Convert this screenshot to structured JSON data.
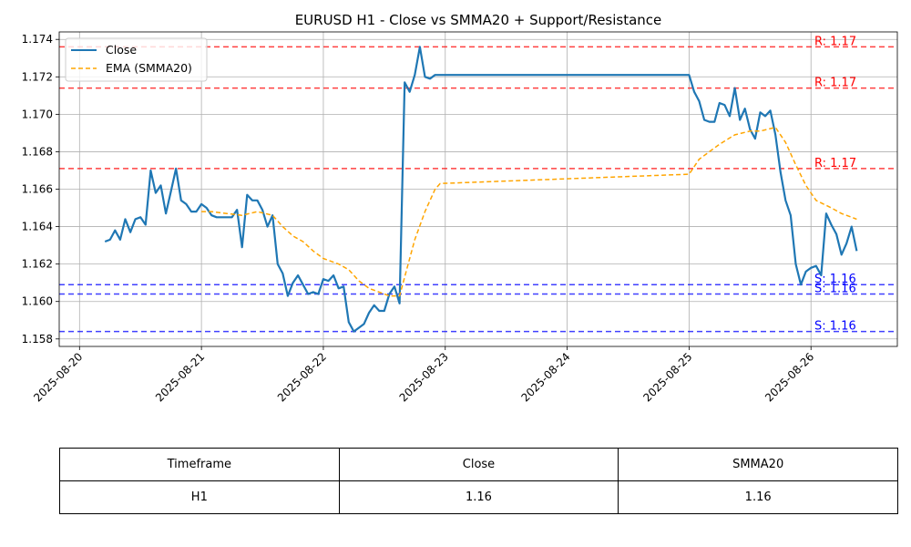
{
  "colors": {
    "close": "#1f77b4",
    "ema": "#ffa500",
    "resistance": "#ff0000",
    "support": "#0000ff",
    "grid": "#b0b0b0"
  },
  "chart_data": {
    "type": "line",
    "title": "EURUSD H1 - Close vs SMMA20 + Support/Resistance",
    "xlabel": "",
    "ylabel": "",
    "xlim": [
      "2025-08-19T20:00",
      "2025-08-26T17:00"
    ],
    "ylim": [
      1.1576,
      1.1744
    ],
    "grid": true,
    "legend": "top-left",
    "x_ticks": [
      "2025-08-20",
      "2025-08-21",
      "2025-08-22",
      "2025-08-23",
      "2025-08-24",
      "2025-08-25",
      "2025-08-26"
    ],
    "y_ticks": [
      "1.158",
      "1.160",
      "1.162",
      "1.164",
      "1.166",
      "1.168",
      "1.170",
      "1.172",
      "1.174"
    ],
    "series": [
      {
        "name": "Close",
        "style": "solid",
        "points": [
          [
            "2025-08-20T05:00",
            1.1632
          ],
          [
            "2025-08-20T06:00",
            1.1633
          ],
          [
            "2025-08-20T07:00",
            1.1638
          ],
          [
            "2025-08-20T08:00",
            1.1633
          ],
          [
            "2025-08-20T09:00",
            1.1644
          ],
          [
            "2025-08-20T10:00",
            1.1637
          ],
          [
            "2025-08-20T11:00",
            1.1644
          ],
          [
            "2025-08-20T12:00",
            1.1645
          ],
          [
            "2025-08-20T13:00",
            1.1641
          ],
          [
            "2025-08-20T14:00",
            1.167
          ],
          [
            "2025-08-20T15:00",
            1.1658
          ],
          [
            "2025-08-20T16:00",
            1.1662
          ],
          [
            "2025-08-20T17:00",
            1.1647
          ],
          [
            "2025-08-20T18:00",
            1.1659
          ],
          [
            "2025-08-20T19:00",
            1.1671
          ],
          [
            "2025-08-20T20:00",
            1.1654
          ],
          [
            "2025-08-20T21:00",
            1.1652
          ],
          [
            "2025-08-20T22:00",
            1.1648
          ],
          [
            "2025-08-20T23:00",
            1.1648
          ],
          [
            "2025-08-21T00:00",
            1.1652
          ],
          [
            "2025-08-21T01:00",
            1.165
          ],
          [
            "2025-08-21T02:00",
            1.1646
          ],
          [
            "2025-08-21T03:00",
            1.1645
          ],
          [
            "2025-08-21T04:00",
            1.1645
          ],
          [
            "2025-08-21T05:00",
            1.1645
          ],
          [
            "2025-08-21T06:00",
            1.1645
          ],
          [
            "2025-08-21T07:00",
            1.1649
          ],
          [
            "2025-08-21T08:00",
            1.1629
          ],
          [
            "2025-08-21T09:00",
            1.1657
          ],
          [
            "2025-08-21T10:00",
            1.1654
          ],
          [
            "2025-08-21T11:00",
            1.1654
          ],
          [
            "2025-08-21T12:00",
            1.1649
          ],
          [
            "2025-08-21T13:00",
            1.164
          ],
          [
            "2025-08-21T14:00",
            1.1646
          ],
          [
            "2025-08-21T15:00",
            1.162
          ],
          [
            "2025-08-21T16:00",
            1.1615
          ],
          [
            "2025-08-21T17:00",
            1.1603
          ],
          [
            "2025-08-21T18:00",
            1.161
          ],
          [
            "2025-08-21T19:00",
            1.1614
          ],
          [
            "2025-08-21T20:00",
            1.1609
          ],
          [
            "2025-08-21T21:00",
            1.1604
          ],
          [
            "2025-08-21T22:00",
            1.1605
          ],
          [
            "2025-08-21T23:00",
            1.1604
          ],
          [
            "2025-08-22T00:00",
            1.1612
          ],
          [
            "2025-08-22T01:00",
            1.1611
          ],
          [
            "2025-08-22T02:00",
            1.1614
          ],
          [
            "2025-08-22T03:00",
            1.1607
          ],
          [
            "2025-08-22T04:00",
            1.1608
          ],
          [
            "2025-08-22T05:00",
            1.1589
          ],
          [
            "2025-08-22T06:00",
            1.1584
          ],
          [
            "2025-08-22T07:00",
            1.1586
          ],
          [
            "2025-08-22T08:00",
            1.1588
          ],
          [
            "2025-08-22T09:00",
            1.1594
          ],
          [
            "2025-08-22T10:00",
            1.1598
          ],
          [
            "2025-08-22T11:00",
            1.1595
          ],
          [
            "2025-08-22T12:00",
            1.1595
          ],
          [
            "2025-08-22T13:00",
            1.1604
          ],
          [
            "2025-08-22T14:00",
            1.1608
          ],
          [
            "2025-08-22T15:00",
            1.1599
          ],
          [
            "2025-08-22T16:00",
            1.1717
          ],
          [
            "2025-08-22T17:00",
            1.1712
          ],
          [
            "2025-08-22T18:00",
            1.1721
          ],
          [
            "2025-08-22T19:00",
            1.1736
          ],
          [
            "2025-08-22T20:00",
            1.172
          ],
          [
            "2025-08-22T21:00",
            1.1719
          ],
          [
            "2025-08-22T22:00",
            1.1721
          ],
          [
            "2025-08-22T23:00",
            1.1721
          ],
          [
            "2025-08-25T00:00",
            1.1721
          ],
          [
            "2025-08-25T01:00",
            1.1712
          ],
          [
            "2025-08-25T02:00",
            1.1707
          ],
          [
            "2025-08-25T03:00",
            1.1697
          ],
          [
            "2025-08-25T04:00",
            1.1696
          ],
          [
            "2025-08-25T05:00",
            1.1696
          ],
          [
            "2025-08-25T06:00",
            1.1706
          ],
          [
            "2025-08-25T07:00",
            1.1705
          ],
          [
            "2025-08-25T08:00",
            1.1699
          ],
          [
            "2025-08-25T09:00",
            1.1714
          ],
          [
            "2025-08-25T10:00",
            1.1697
          ],
          [
            "2025-08-25T11:00",
            1.1703
          ],
          [
            "2025-08-25T12:00",
            1.1692
          ],
          [
            "2025-08-25T13:00",
            1.1687
          ],
          [
            "2025-08-25T14:00",
            1.1701
          ],
          [
            "2025-08-25T15:00",
            1.1699
          ],
          [
            "2025-08-25T16:00",
            1.1702
          ],
          [
            "2025-08-25T17:00",
            1.1689
          ],
          [
            "2025-08-25T18:00",
            1.1669
          ],
          [
            "2025-08-25T19:00",
            1.1654
          ],
          [
            "2025-08-25T20:00",
            1.1646
          ],
          [
            "2025-08-25T21:00",
            1.162
          ],
          [
            "2025-08-25T22:00",
            1.1609
          ],
          [
            "2025-08-25T23:00",
            1.1616
          ],
          [
            "2025-08-26T00:00",
            1.1618
          ],
          [
            "2025-08-26T01:00",
            1.1619
          ],
          [
            "2025-08-26T02:00",
            1.1614
          ],
          [
            "2025-08-26T03:00",
            1.1647
          ],
          [
            "2025-08-26T04:00",
            1.1641
          ],
          [
            "2025-08-26T05:00",
            1.1636
          ],
          [
            "2025-08-26T06:00",
            1.1625
          ],
          [
            "2025-08-26T07:00",
            1.1631
          ],
          [
            "2025-08-26T08:00",
            1.164
          ],
          [
            "2025-08-26T09:00",
            1.1627
          ]
        ]
      },
      {
        "name": "EMA (SMMA20)",
        "style": "dashed",
        "points": [
          [
            "2025-08-21T00:00",
            1.1648
          ],
          [
            "2025-08-21T02:00",
            1.1648
          ],
          [
            "2025-08-21T05:00",
            1.1647
          ],
          [
            "2025-08-21T08:00",
            1.1646
          ],
          [
            "2025-08-21T11:00",
            1.1648
          ],
          [
            "2025-08-21T14:00",
            1.1646
          ],
          [
            "2025-08-21T16:00",
            1.164
          ],
          [
            "2025-08-21T18:00",
            1.1635
          ],
          [
            "2025-08-21T20:00",
            1.1632
          ],
          [
            "2025-08-21T22:00",
            1.1627
          ],
          [
            "2025-08-22T00:00",
            1.1623
          ],
          [
            "2025-08-22T03:00",
            1.162
          ],
          [
            "2025-08-22T05:00",
            1.1617
          ],
          [
            "2025-08-22T07:00",
            1.1611
          ],
          [
            "2025-08-22T09:00",
            1.1607
          ],
          [
            "2025-08-22T11:00",
            1.1605
          ],
          [
            "2025-08-22T13:00",
            1.1603
          ],
          [
            "2025-08-22T15:00",
            1.1603
          ],
          [
            "2025-08-22T18:00",
            1.1633
          ],
          [
            "2025-08-22T20:00",
            1.1648
          ],
          [
            "2025-08-22T22:00",
            1.166
          ],
          [
            "2025-08-22T23:00",
            1.1663
          ],
          [
            "2025-08-25T00:00",
            1.1668
          ],
          [
            "2025-08-25T02:00",
            1.1676
          ],
          [
            "2025-08-25T04:00",
            1.168
          ],
          [
            "2025-08-25T06:00",
            1.1684
          ],
          [
            "2025-08-25T09:00",
            1.1689
          ],
          [
            "2025-08-25T12:00",
            1.1691
          ],
          [
            "2025-08-25T14:00",
            1.1691
          ],
          [
            "2025-08-25T17:00",
            1.1693
          ],
          [
            "2025-08-25T19:00",
            1.1685
          ],
          [
            "2025-08-25T21:00",
            1.1673
          ],
          [
            "2025-08-25T23:00",
            1.1662
          ],
          [
            "2025-08-26T01:00",
            1.1654
          ],
          [
            "2025-08-26T04:00",
            1.165
          ],
          [
            "2025-08-26T06:00",
            1.1647
          ],
          [
            "2025-08-26T09:00",
            1.1644
          ]
        ]
      }
    ],
    "levels": [
      {
        "kind": "resistance",
        "value": 1.1736,
        "label": "R: 1.17"
      },
      {
        "kind": "resistance",
        "value": 1.1714,
        "label": "R: 1.17"
      },
      {
        "kind": "resistance",
        "value": 1.1671,
        "label": "R: 1.17"
      },
      {
        "kind": "support",
        "value": 1.1609,
        "label": "S: 1.16"
      },
      {
        "kind": "support",
        "value": 1.1604,
        "label": "S: 1.16"
      },
      {
        "kind": "support",
        "value": 1.1584,
        "label": "S: 1.16"
      }
    ]
  },
  "table": {
    "headers": [
      "Timeframe",
      "Close",
      "SMMA20"
    ],
    "rows": [
      [
        "H1",
        "1.16",
        "1.16"
      ]
    ]
  }
}
